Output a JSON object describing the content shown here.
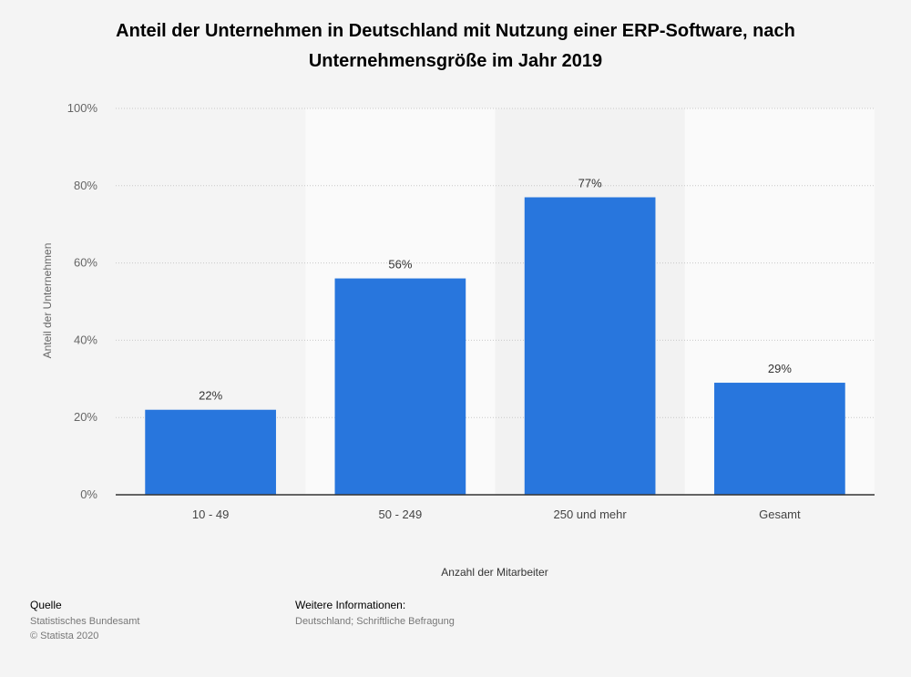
{
  "chart_data": {
    "type": "bar",
    "title": "Anteil der Unternehmen in Deutschland mit Nutzung einer ERP-Software, nach Unternehmensgröße im Jahr 2019",
    "categories": [
      "10 - 49",
      "50 - 249",
      "250 und mehr",
      "Gesamt"
    ],
    "values": [
      22,
      56,
      77,
      29
    ],
    "value_labels": [
      "22%",
      "56%",
      "77%",
      "29%"
    ],
    "xlabel": "Anzahl der Mitarbeiter",
    "ylabel": "Anteil der Unternehmen",
    "ylim": [
      0,
      100
    ],
    "yticks": [
      0,
      20,
      40,
      60,
      80,
      100
    ],
    "ytick_labels": [
      "0%",
      "20%",
      "40%",
      "60%",
      "80%",
      "100%"
    ],
    "grid": true,
    "bar_color": "#2876dd"
  },
  "footer": {
    "source_label": "Quelle",
    "source_lines": [
      "Statistisches Bundesamt",
      "© Statista 2020"
    ],
    "info_label": "Weitere Informationen:",
    "info_text": "Deutschland; Schriftliche Befragung"
  }
}
